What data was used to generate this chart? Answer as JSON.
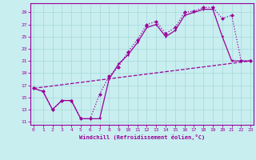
{
  "xlabel": "Windchill (Refroidissement éolien,°C)",
  "bg_color": "#c8eef0",
  "grid_color": "#a8d8d8",
  "line_color": "#990099",
  "xlim": [
    -0.3,
    23.3
  ],
  "ylim": [
    10.5,
    30.5
  ],
  "yticks": [
    11,
    13,
    15,
    17,
    19,
    21,
    23,
    25,
    27,
    29
  ],
  "xticks": [
    0,
    1,
    2,
    3,
    4,
    5,
    6,
    7,
    8,
    9,
    10,
    11,
    12,
    13,
    14,
    15,
    16,
    17,
    18,
    19,
    20,
    21,
    22,
    23
  ],
  "c1x": [
    0,
    1,
    2,
    3,
    4,
    5,
    6,
    7,
    8,
    9,
    10,
    11,
    12,
    13,
    14,
    15,
    16,
    17,
    18,
    19,
    20,
    21,
    22,
    23
  ],
  "c1y": [
    16.5,
    16.0,
    13.0,
    14.5,
    14.5,
    11.5,
    11.5,
    11.5,
    18.0,
    20.5,
    22.0,
    24.0,
    26.5,
    27.0,
    25.0,
    26.0,
    28.5,
    29.0,
    29.5,
    29.5,
    25.0,
    21.0,
    21.0,
    21.0
  ],
  "c2x": [
    0,
    1,
    2,
    3,
    4,
    5,
    6,
    7,
    8,
    9,
    10,
    11,
    12,
    13,
    14,
    15,
    16,
    17,
    18,
    19,
    20,
    21,
    22,
    23
  ],
  "c2y": [
    16.5,
    16.0,
    13.0,
    14.5,
    14.5,
    11.5,
    11.5,
    15.5,
    18.5,
    20.0,
    22.5,
    24.5,
    27.0,
    27.5,
    25.5,
    26.5,
    29.0,
    29.2,
    29.8,
    29.8,
    28.0,
    28.5,
    21.0,
    21.0
  ],
  "c3x": [
    0,
    23
  ],
  "c3y": [
    16.5,
    21.0
  ],
  "marker_size": 2.5,
  "lw": 0.9
}
